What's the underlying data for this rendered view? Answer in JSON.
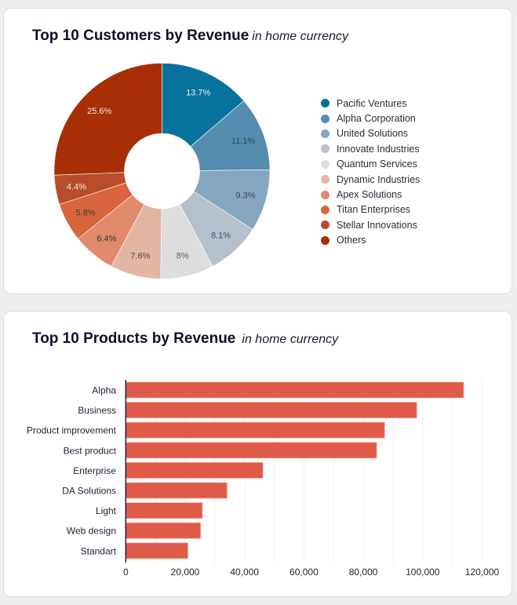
{
  "customers_card": {
    "title": "Top 10 Customers by Revenue",
    "subtitle": "in home currency"
  },
  "products_card": {
    "title": "Top 10 Products by Revenue",
    "subtitle": "in home currency"
  },
  "chart_data": [
    {
      "type": "pie",
      "variant": "donut",
      "title": "Top 10 Customers by Revenue",
      "subtitle": "in home currency",
      "legend_position": "right",
      "labels": [
        "Pacific Ventures",
        "Alpha Corporation",
        "United Solutions",
        "Innovate Industries",
        "Quantum Services",
        "Dynamic Industries",
        "Apex Solutions",
        "Titan Enterprises",
        "Stellar Innovations",
        "Others"
      ],
      "values": [
        13.7,
        11.1,
        9.3,
        8.1,
        8,
        7.6,
        6.4,
        5.8,
        4.4,
        25.6
      ],
      "value_labels": [
        "13.7%",
        "11.1%",
        "9.3%",
        "8.1%",
        "8%",
        "7.6%",
        "6.4%",
        "5.8%",
        "4.4%",
        "25.6%"
      ],
      "colors": [
        "#08729e",
        "#548daf",
        "#86a6c0",
        "#b5c0cd",
        "#dddddd",
        "#e3b5a3",
        "#e28a6c",
        "#d9653f",
        "#b84d2c",
        "#a82e05"
      ],
      "label_colors": [
        "#eef4f8",
        "#2f4a5a",
        "#2f4a5a",
        "#3f5563",
        "#4e6370",
        "#4a4a4a",
        "#3a3a3a",
        "#3a3a3a",
        "#f4e6e0",
        "#f6e8e2"
      ]
    },
    {
      "type": "bar",
      "orientation": "horizontal",
      "title": "Top 10 Products by Revenue",
      "subtitle": "in home currency",
      "categories": [
        "Alpha",
        "Business",
        "Product improvement",
        "Best product",
        "Enterprise",
        "DA Solutions",
        "Light",
        "Web design",
        "Standart"
      ],
      "values": [
        113800,
        98000,
        87200,
        84500,
        46200,
        34100,
        25800,
        25200,
        20900
      ],
      "xlim": [
        0,
        120000
      ],
      "xticks": [
        0,
        20000,
        40000,
        60000,
        80000,
        100000,
        120000
      ],
      "xtick_labels": [
        "0",
        "20,000",
        "40,000",
        "60,000",
        "80,000",
        "100,000",
        "120,000"
      ],
      "minor_grid_step": 10000,
      "grid": true,
      "xlabel": "",
      "ylabel": "",
      "bar_color": "#e05a4a",
      "bar_border_color": "#f0a498"
    }
  ]
}
